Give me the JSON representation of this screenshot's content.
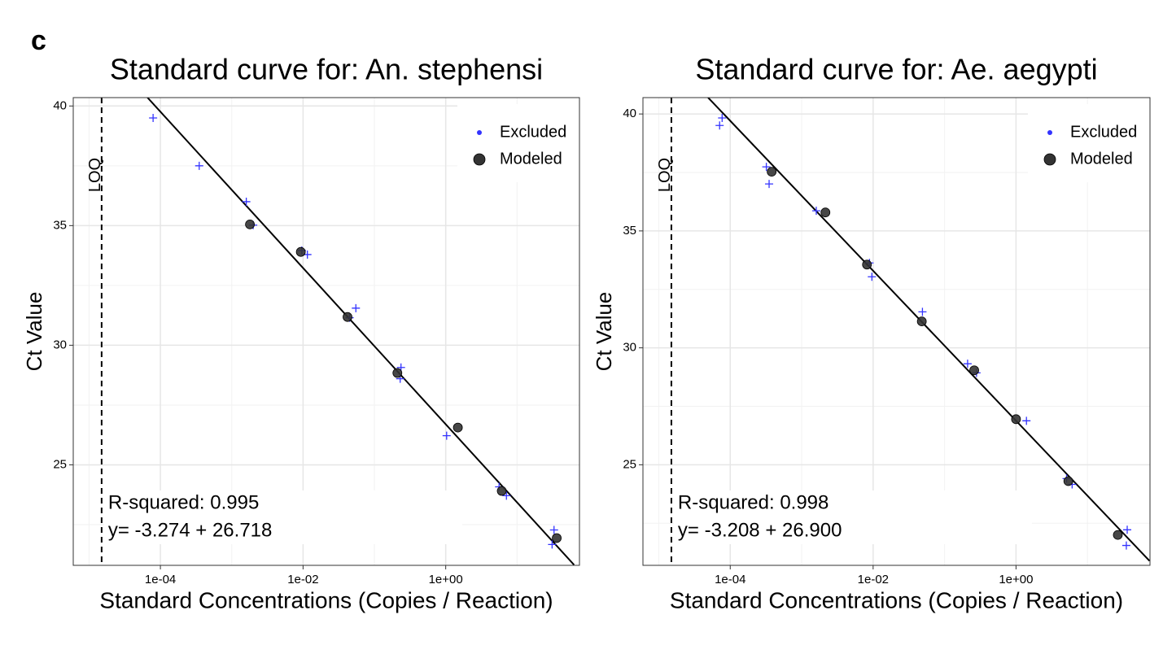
{
  "panel_label": "c",
  "chart_data": [
    {
      "type": "scatter",
      "title": "Standard curve for: An. stephensi",
      "x_label": "Standard Concentrations (Copies / Reaction)",
      "y_label": "Ct Value",
      "log_x": true,
      "grid": true,
      "legend": "top-right",
      "xlim": [
        6e-06,
        75
      ],
      "ylim": [
        20.8,
        40.35
      ],
      "xticks": [
        {
          "value": 0.0001,
          "label": "1e-04"
        },
        {
          "value": 0.01,
          "label": "1e-02"
        },
        {
          "value": 1,
          "label": "1e+00"
        }
      ],
      "yticks": [
        25,
        30,
        35,
        40
      ],
      "loq": {
        "label": "LOQ",
        "x": 1.5e-05
      },
      "annotations": [
        "R-squared: 0.995",
        "y= -3.274 + 26.718"
      ],
      "fit_line": {
        "color": "#000000",
        "x": [
          6.6e-05,
          63
        ],
        "values": [
          40.35,
          20.82
        ]
      },
      "series": [
        {
          "name": "Excluded",
          "color": "#3333ff",
          "marker": "plus",
          "x": [
            7.9e-05,
            0.00035,
            0.0016,
            0.002,
            0.0096,
            0.0115,
            0.055,
            0.045,
            0.236,
            0.23,
            1.03,
            5.6,
            7.1,
            33,
            31
          ],
          "values": [
            39.5,
            37.5,
            36.0,
            35.02,
            33.96,
            33.79,
            31.55,
            31.15,
            29.07,
            28.6,
            26.22,
            24.08,
            23.71,
            22.28,
            21.67
          ]
        },
        {
          "name": "Modeled",
          "color": "#333333",
          "marker": "circle",
          "x": [
            0.0018,
            0.0093,
            0.042,
            0.21,
            1.48,
            6.1,
            36
          ],
          "values": [
            35.05,
            33.9,
            31.18,
            28.84,
            26.56,
            23.91,
            21.94
          ]
        }
      ]
    },
    {
      "type": "scatter",
      "title": "Standard curve for: Ae. aegypti",
      "x_label": "Standard Concentrations (Copies / Reaction)",
      "y_label": "Ct Value",
      "log_x": true,
      "grid": true,
      "legend": "top-right",
      "xlim": [
        6e-06,
        75
      ],
      "ylim": [
        20.7,
        40.7
      ],
      "xticks": [
        {
          "value": 0.0001,
          "label": "1e-04"
        },
        {
          "value": 0.01,
          "label": "1e-02"
        },
        {
          "value": 1,
          "label": "1e+00"
        }
      ],
      "yticks": [
        25,
        30,
        35,
        40
      ],
      "loq": {
        "label": "LOQ",
        "x": 1.5e-05
      },
      "annotations": [
        "R-squared: 0.998",
        "y= -3.208 + 26.900"
      ],
      "fit_line": {
        "color": "#000000",
        "x": [
          4.9e-05,
          74
        ],
        "values": [
          40.7,
          20.89
        ]
      },
      "series": [
        {
          "name": "Excluded",
          "color": "#3333ff",
          "marker": "plus",
          "x": [
            7.7e-05,
            7.1e-05,
            0.00032,
            0.00035,
            0.0016,
            0.0089,
            0.0096,
            0.049,
            0.21,
            0.28,
            1.4,
            5.1,
            6.1,
            36,
            35
          ],
          "values": [
            39.83,
            39.51,
            37.74,
            37.01,
            35.86,
            33.63,
            33.04,
            31.54,
            29.32,
            28.93,
            26.88,
            24.41,
            24.16,
            22.22,
            21.55
          ]
        },
        {
          "name": "Modeled",
          "color": "#333333",
          "marker": "circle",
          "x": [
            0.00038,
            0.00215,
            0.0082,
            0.048,
            0.26,
            1.0,
            5.4,
            26.6
          ],
          "values": [
            37.53,
            35.79,
            33.56,
            31.13,
            29.04,
            26.95,
            24.3,
            22.0
          ]
        }
      ]
    }
  ]
}
